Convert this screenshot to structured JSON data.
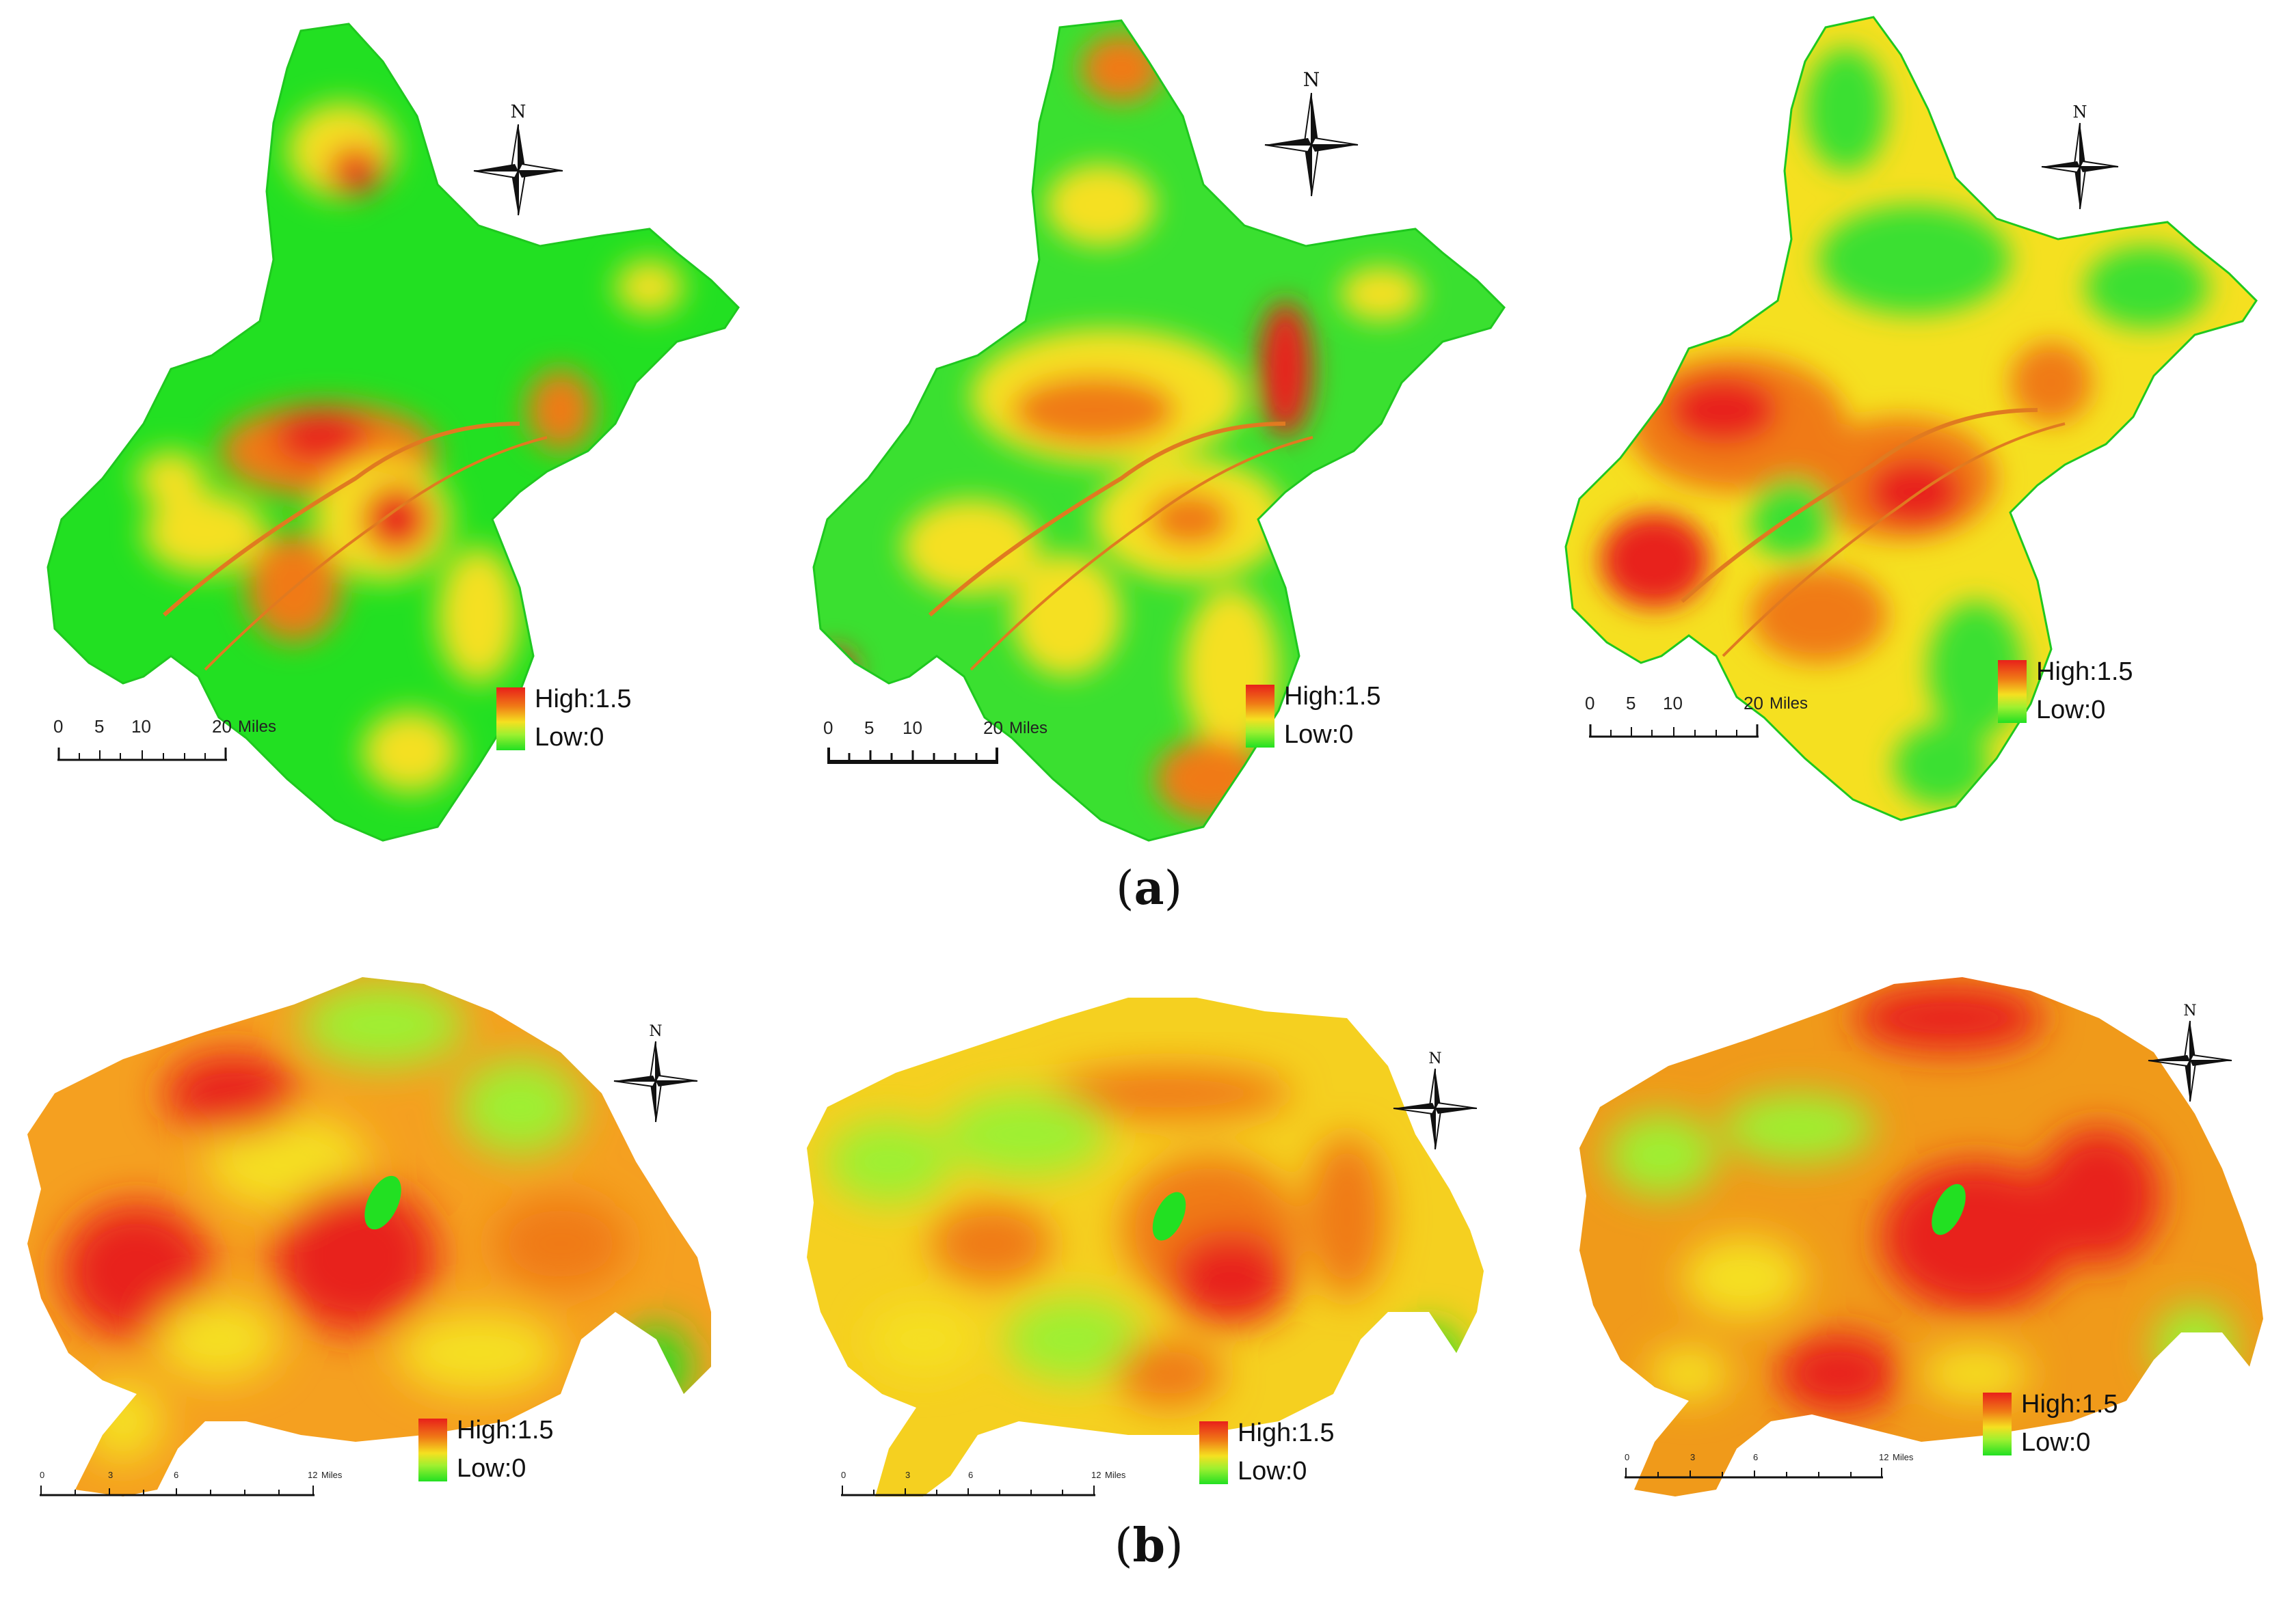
{
  "captions": {
    "a": "a",
    "b": "b"
  },
  "legend": {
    "high_label": "High:1.5",
    "low_label": "Low:0",
    "high_color": "#e8201a",
    "mid_color": "#f5e020",
    "low_color": "#22e022"
  },
  "compass": {
    "north_label": "N",
    "icon": "north-arrow-icon"
  },
  "scale_a": {
    "ticks": [
      "0",
      "5",
      "10",
      "20"
    ],
    "unit": "Miles"
  },
  "scale_b": {
    "ticks": [
      "0",
      "3",
      "6",
      "12"
    ],
    "unit": "Miles"
  },
  "colors": {
    "red": "#e8201a",
    "orange": "#f07a16",
    "yellow": "#f5e020",
    "green": "#22e022",
    "stroke": "#e07a20"
  }
}
